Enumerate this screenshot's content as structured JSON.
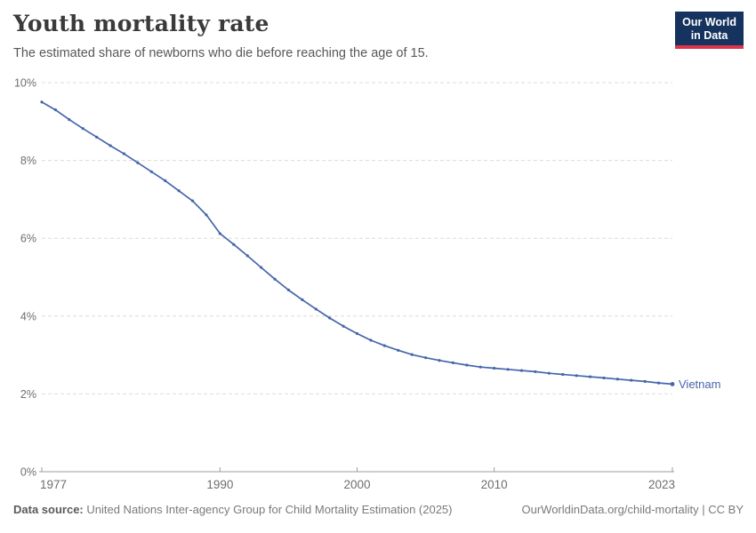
{
  "header": {
    "title": "Youth mortality rate",
    "subtitle": "The estimated share of newborns who die before reaching the age of 15."
  },
  "logo": {
    "line1": "Our World",
    "line2": "in Data"
  },
  "footer": {
    "source_label": "Data source:",
    "source_text": " United Nations Inter-agency Group for Child Mortality Estimation (2025)",
    "right_text": "OurWorldinData.org/child-mortality | CC BY"
  },
  "colors": {
    "line": "#4566AB",
    "grid": "#dcdcdc",
    "axis": "#9e9e9e",
    "tick_text": "#6e6e6e",
    "navy": "#15335E",
    "red": "#DC354A"
  },
  "chart_data": {
    "type": "line",
    "title": "Youth mortality rate",
    "subtitle": "The estimated share of newborns who die before reaching the age of 15.",
    "xlabel": "",
    "ylabel": "",
    "xlim": [
      1977,
      2023
    ],
    "ylim": [
      0,
      10
    ],
    "grid": true,
    "legend_position": "end-of-line",
    "x_ticks": [
      1977,
      1990,
      2000,
      2010,
      2023
    ],
    "y_ticks": [
      "0%",
      "2%",
      "4%",
      "6%",
      "8%",
      "10%"
    ],
    "series": [
      {
        "name": "Vietnam",
        "color": "#4566AB",
        "x": [
          1977,
          1978,
          1979,
          1980,
          1981,
          1982,
          1983,
          1984,
          1985,
          1986,
          1987,
          1988,
          1989,
          1990,
          1991,
          1992,
          1993,
          1994,
          1995,
          1996,
          1997,
          1998,
          1999,
          2000,
          2001,
          2002,
          2003,
          2004,
          2005,
          2006,
          2007,
          2008,
          2009,
          2010,
          2011,
          2012,
          2013,
          2014,
          2015,
          2016,
          2017,
          2018,
          2019,
          2020,
          2021,
          2022,
          2023
        ],
        "values": [
          9.5,
          9.3,
          9.05,
          8.82,
          8.6,
          8.38,
          8.17,
          7.94,
          7.71,
          7.48,
          7.22,
          6.96,
          6.6,
          6.12,
          5.84,
          5.55,
          5.25,
          4.95,
          4.67,
          4.42,
          4.18,
          3.95,
          3.74,
          3.55,
          3.38,
          3.24,
          3.12,
          3.01,
          2.93,
          2.86,
          2.8,
          2.74,
          2.69,
          2.66,
          2.63,
          2.6,
          2.57,
          2.53,
          2.5,
          2.47,
          2.44,
          2.41,
          2.38,
          2.35,
          2.32,
          2.28,
          2.25
        ]
      }
    ]
  }
}
